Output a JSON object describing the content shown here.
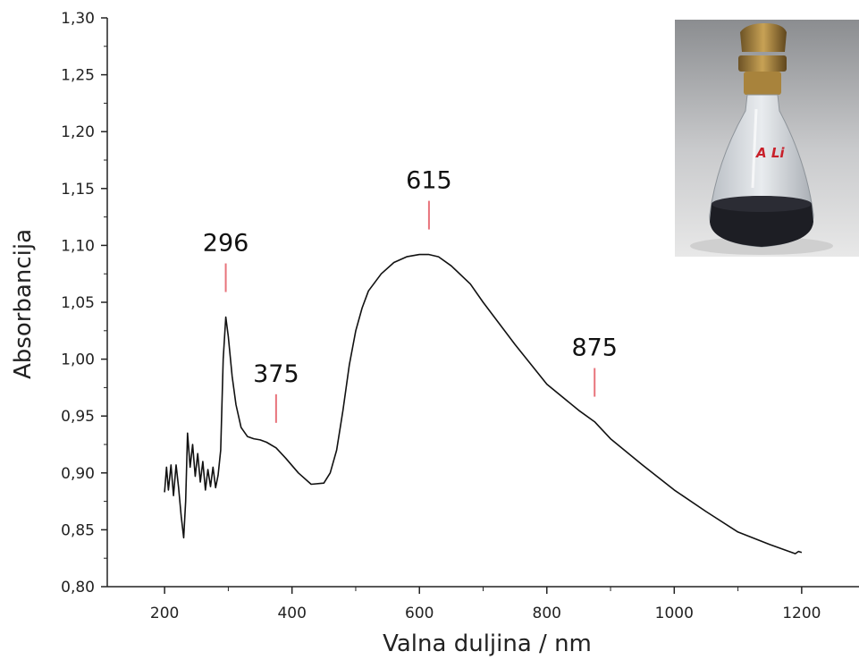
{
  "chart_data": {
    "type": "line",
    "title": "",
    "xlabel": "Valna duljina / nm",
    "ylabel": "Absorbancija",
    "xlim": [
      110,
      1290
    ],
    "ylim": [
      0.8,
      1.3
    ],
    "x_ticks": [
      200,
      400,
      600,
      800,
      1000,
      1200
    ],
    "x_tick_labels": [
      "200",
      "400",
      "600",
      "800",
      "1000",
      "1200"
    ],
    "y_ticks": [
      0.8,
      0.85,
      0.9,
      0.95,
      1.0,
      1.05,
      1.1,
      1.15,
      1.2,
      1.25,
      1.3
    ],
    "y_tick_labels": [
      "0,80",
      "0,85",
      "0,90",
      "0,95",
      "1,00",
      "1,05",
      "1,10",
      "1,15",
      "1,20",
      "1,25",
      "1,30"
    ],
    "grid": false,
    "line_color": "#111111",
    "marker_color": "#e8737b",
    "series": [
      {
        "x": [
          200,
          203,
          206,
          210,
          214,
          218,
          222,
          226,
          230,
          233,
          236,
          240,
          244,
          248,
          252,
          256,
          260,
          264,
          268,
          272,
          276,
          280,
          284,
          288,
          292,
          296,
          300,
          306,
          312,
          320,
          330,
          340,
          350,
          360,
          375,
          390,
          410,
          430,
          450,
          460,
          470,
          480,
          490,
          500,
          510,
          520,
          540,
          560,
          580,
          600,
          615,
          630,
          650,
          680,
          700,
          750,
          800,
          850,
          875,
          900,
          950,
          1000,
          1050,
          1100,
          1150,
          1190,
          1195,
          1200
        ],
        "y": [
          0.883,
          0.905,
          0.885,
          0.907,
          0.88,
          0.907,
          0.887,
          0.862,
          0.843,
          0.875,
          0.935,
          0.905,
          0.925,
          0.897,
          0.917,
          0.892,
          0.91,
          0.885,
          0.903,
          0.888,
          0.905,
          0.887,
          0.898,
          0.92,
          1.0,
          1.037,
          1.02,
          0.985,
          0.96,
          0.94,
          0.932,
          0.93,
          0.929,
          0.927,
          0.922,
          0.913,
          0.9,
          0.89,
          0.891,
          0.9,
          0.92,
          0.955,
          0.995,
          1.025,
          1.045,
          1.06,
          1.075,
          1.085,
          1.09,
          1.092,
          1.092,
          1.09,
          1.082,
          1.066,
          1.05,
          1.013,
          0.978,
          0.955,
          0.945,
          0.93,
          0.907,
          0.885,
          0.866,
          0.848,
          0.837,
          0.829,
          0.831,
          0.83
        ]
      }
    ],
    "annotations": [
      {
        "text": "296",
        "x": 296,
        "y": 1.037
      },
      {
        "text": "375",
        "x": 375,
        "y": 0.922
      },
      {
        "text": "615",
        "x": 615,
        "y": 1.092
      },
      {
        "text": "875",
        "x": 875,
        "y": 0.945
      }
    ]
  },
  "inset_photo": {
    "flask_label": "A Li",
    "icon": "erlenmeyer-flask-photo"
  }
}
